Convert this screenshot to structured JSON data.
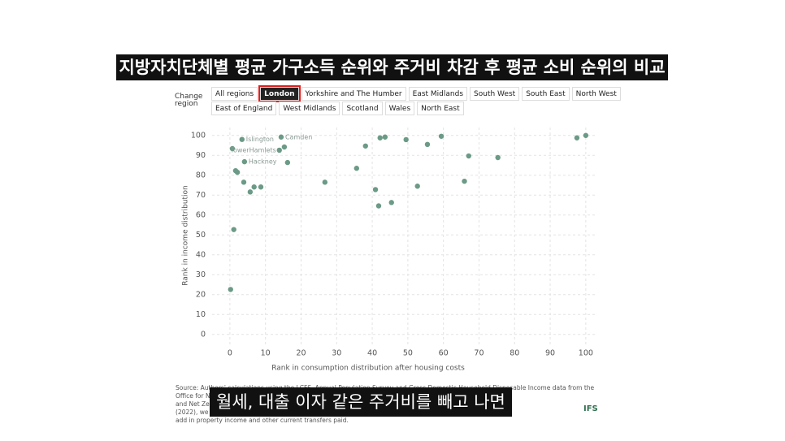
{
  "header": {
    "title": "지방자치단체별 평균 가구소득 순위와 주거비 차감 후 평균 소비 순위의 비교"
  },
  "controls": {
    "label": "Change region",
    "buttons": [
      {
        "label": "All regions",
        "selected": false
      },
      {
        "label": "London",
        "selected": true
      },
      {
        "label": "Yorkshire and The Humber",
        "selected": false
      },
      {
        "label": "East Midlands",
        "selected": false
      },
      {
        "label": "South West",
        "selected": false
      },
      {
        "label": "South East",
        "selected": false
      },
      {
        "label": "North West",
        "selected": false
      },
      {
        "label": "East of England",
        "selected": false
      },
      {
        "label": "West Midlands",
        "selected": false
      },
      {
        "label": "Scotland",
        "selected": false
      },
      {
        "label": "Wales",
        "selected": false
      },
      {
        "label": "North East",
        "selected": false
      }
    ]
  },
  "chart_data": {
    "type": "scatter",
    "x_label": "Rank in consumption distribution after housing costs",
    "y_label": "Rank in income distribution",
    "color": "#6b9a86",
    "grid": true,
    "xlim": [
      -5,
      103
    ],
    "ylim": [
      -5,
      104
    ],
    "xticks": [
      0,
      10,
      20,
      30,
      40,
      50,
      60,
      70,
      80,
      90,
      100
    ],
    "yticks": [
      0,
      10,
      20,
      30,
      40,
      50,
      60,
      70,
      80,
      90,
      100
    ],
    "x": [
      3.4,
      0.7,
      14.4,
      15.3,
      13.9,
      4.1,
      16.2,
      1.6,
      2.1,
      3.9,
      6.8,
      8.7,
      5.7,
      1.1,
      0.2,
      26.7,
      35.6,
      38.1,
      42.2,
      43.6,
      49.5,
      59.4,
      55.5,
      67.1,
      75.3,
      65.9,
      40.9,
      41.8,
      45.4,
      52.7,
      97.5,
      100
    ],
    "y": [
      98,
      93.4,
      99.2,
      94.2,
      92.6,
      86.8,
      86.4,
      82.3,
      81.5,
      76.5,
      74.1,
      74.1,
      71.6,
      52.7,
      22.6,
      76.5,
      83.5,
      94.7,
      98.8,
      99.2,
      97.9,
      99.6,
      95.5,
      89.7,
      88.9,
      77,
      72.8,
      64.6,
      66.3,
      74.5,
      98.8,
      100
    ],
    "point_labels": [
      "Islington",
      null,
      "Camden",
      null,
      "TowerHamlets",
      "Hackney",
      null,
      null,
      null,
      null,
      null,
      null,
      null,
      null,
      null,
      null,
      null,
      null,
      null,
      null,
      null,
      null,
      null,
      null,
      null,
      null,
      null,
      null,
      null,
      null,
      null,
      null
    ]
  },
  "source": [
    "Source: Authors' calculations using the LCFS, Annual Population Survey and Gross Domestic Household Disposable Income data from the",
    "Office for N",
    "and Net Ze",
    "(2022), we",
    "add in property income and other current transfers paid."
  ],
  "caption": "월세, 대출 이자 같은 주거비를 빼고 나면",
  "logo": "IFS"
}
